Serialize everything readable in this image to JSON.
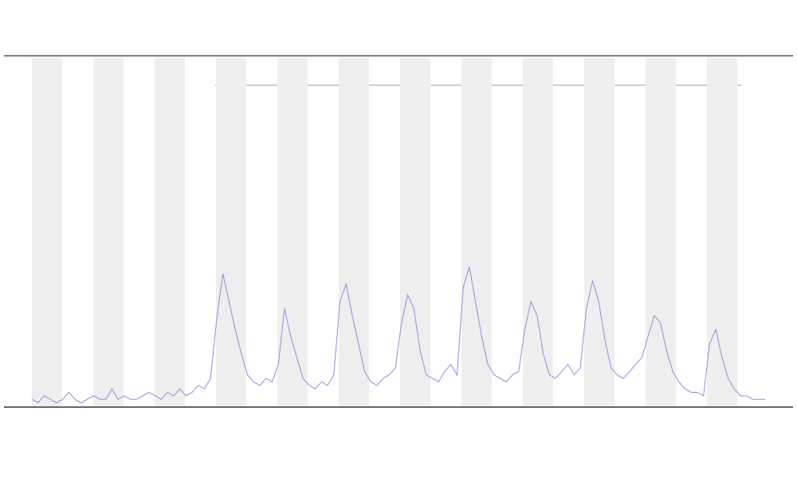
{
  "chart_data": {
    "type": "line",
    "series": [
      {
        "color": "#8b8fe0",
        "values": [
          2,
          1,
          3,
          2,
          1,
          2,
          4,
          2,
          1,
          2,
          3,
          2,
          2,
          5,
          2,
          3,
          2,
          2,
          3,
          4,
          3,
          2,
          4,
          3,
          5,
          3,
          4,
          6,
          5,
          8,
          25,
          38,
          30,
          22,
          15,
          9,
          7,
          6,
          8,
          7,
          12,
          28,
          20,
          14,
          8,
          6,
          5,
          7,
          6,
          9,
          30,
          35,
          26,
          18,
          10,
          7,
          6,
          8,
          9,
          11,
          24,
          32,
          28,
          16,
          9,
          8,
          7,
          10,
          12,
          9,
          34,
          40,
          30,
          20,
          12,
          9,
          8,
          7,
          9,
          10,
          22,
          30,
          26,
          15,
          9,
          8,
          10,
          12,
          9,
          11,
          28,
          36,
          30,
          19,
          11,
          9,
          8,
          10,
          12,
          14,
          20,
          26,
          24,
          16,
          10,
          7,
          5,
          4,
          4,
          3,
          18,
          22,
          14,
          8,
          5,
          3,
          3,
          2,
          2,
          2
        ]
      }
    ],
    "ylim": [
      0,
      100
    ]
  }
}
